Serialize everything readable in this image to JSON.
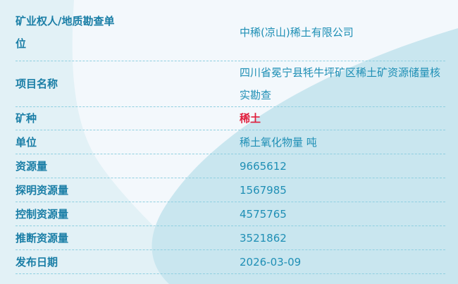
{
  "rows": [
    {
      "label": "矿业权人/地质勘查单位",
      "value": "中稀(凉山)稀土有限公司"
    },
    {
      "label": "项目名称",
      "value": "四川省冕宁县牦牛坪矿区稀土矿资源储量核实勘查"
    },
    {
      "label": "矿种",
      "value": "稀土"
    },
    {
      "label": "单位",
      "value": "稀土氧化物量 吨"
    },
    {
      "label": "资源量",
      "value": "9665612"
    },
    {
      "label": "探明资源量",
      "value": "1567985"
    },
    {
      "label": "控制资源量",
      "value": "4575765"
    },
    {
      "label": "推断资源量",
      "value": "3521862"
    },
    {
      "label": "发布日期",
      "value": "2026-03-09"
    }
  ],
  "colors": {
    "label": "#1a7ea6",
    "value": "#1f8fb5",
    "highlight": "#e01f3d",
    "divider": "#8fcfe0"
  }
}
